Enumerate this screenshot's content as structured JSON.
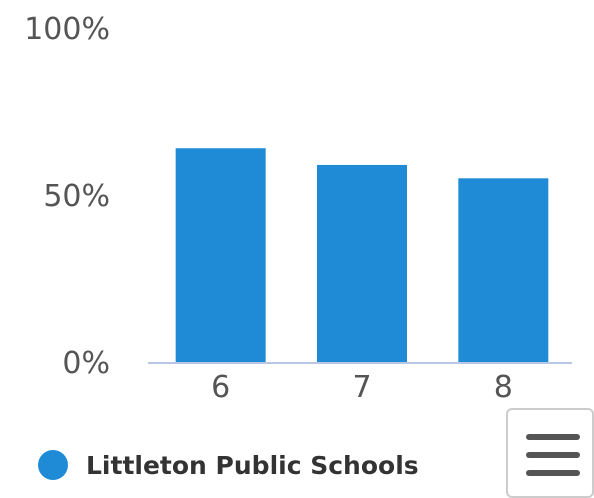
{
  "chart_data": {
    "type": "bar",
    "categories": [
      "6",
      "7",
      "8"
    ],
    "series": [
      {
        "name": "Littleton Public Schools",
        "values": [
          64,
          59,
          55
        ]
      }
    ],
    "ylim": [
      0,
      100
    ],
    "y_ticks": [
      "0%",
      "50%",
      "100%"
    ],
    "grid": false,
    "legend": "bottom-left",
    "colors": {
      "bar": "#1f8bd6",
      "axis": "#b9c6e6",
      "tick_text": "#555555"
    }
  },
  "toolbar": {
    "menu_icon": "hamburger-menu-icon"
  }
}
